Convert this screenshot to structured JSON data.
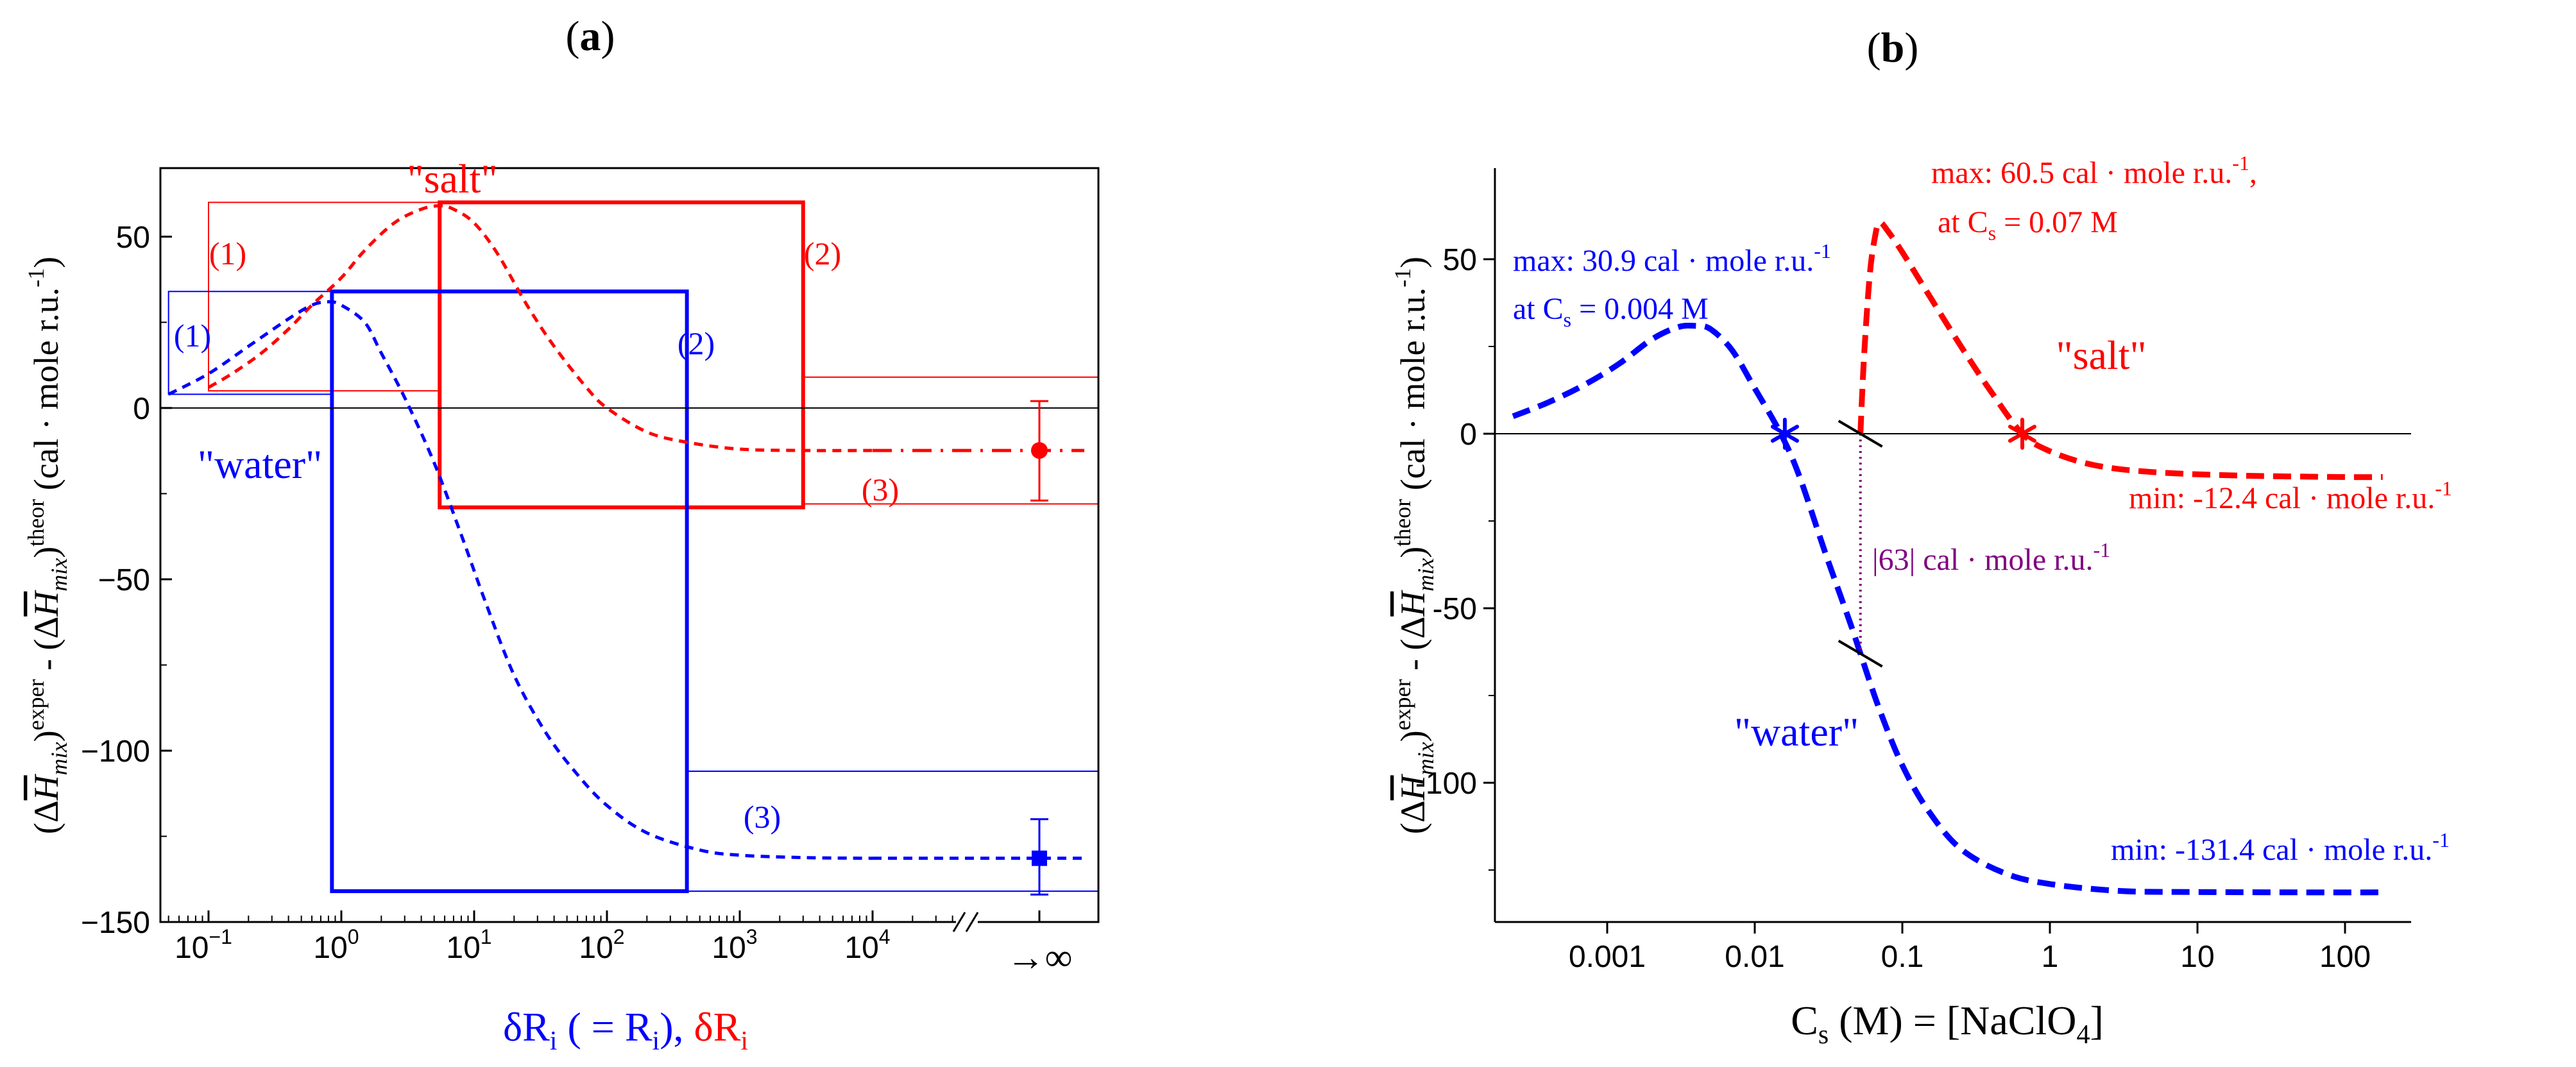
{
  "chart_data": [
    {
      "panel_label": "(a)",
      "type": "line",
      "x_scale": "log",
      "xlim": [
        0.05,
        30000
      ],
      "ylim": [
        -150,
        70
      ],
      "yticks": [
        -150,
        -100,
        -50,
        0,
        50
      ],
      "ytick_labels": [
        "−150",
        "−100",
        "−50",
        "0",
        "50"
      ],
      "xticks": [
        0.1,
        1,
        10,
        100,
        1000,
        10000
      ],
      "xtick_mantissa": "10",
      "xtick_exponents": [
        "−1",
        "0",
        "1",
        "2",
        "3",
        "4"
      ],
      "infinity_label": "→∞",
      "ylabel": {
        "open": "(Δ",
        "h": "H",
        "mix": "mix",
        "close": ")",
        "exper": "exper",
        "minus": " - (Δ",
        "theor": "theor",
        "units_open": " (cal · mole r.u.",
        "units_exp": "-1",
        "units_close": ")"
      },
      "xlabel": {
        "blue_main": "δR",
        "blue_sub": "i",
        "blue_mid": " ( = R",
        "blue_sub2": "i",
        "blue_end": "),",
        "red_main": " δR",
        "red_sub": "i"
      },
      "series": [
        {
          "name": "\"salt\"",
          "color": "#ff0000",
          "x": [
            0.1,
            0.15,
            0.25,
            0.4,
            0.6,
            1,
            1.5,
            2.5,
            4,
            5.5,
            7,
            10,
            15,
            25,
            40,
            70,
            100,
            200,
            400,
            1000,
            3000,
            10000
          ],
          "y": [
            6,
            10,
            16,
            23,
            30,
            38,
            46,
            54,
            58,
            59,
            58,
            54,
            45,
            30,
            18,
            6,
            0,
            -7,
            -10,
            -12,
            -12.4,
            -12.4
          ],
          "infinity_value": -12.4,
          "infinity_error": [
            -27,
            2
          ],
          "annotations": [
            "(1)",
            "(2)",
            "(3)"
          ]
        },
        {
          "name": "\"water\"",
          "color": "#0000ff",
          "x": [
            0.05,
            0.1,
            0.2,
            0.4,
            0.6,
            0.8,
            1,
            1.5,
            2,
            3,
            5,
            8,
            12,
            20,
            35,
            60,
            100,
            200,
            500,
            1000,
            3000,
            10000
          ],
          "y": [
            4,
            10,
            18,
            26,
            30,
            31,
            30,
            25,
            16,
            3,
            -16,
            -37,
            -56,
            -78,
            -95,
            -107,
            -116,
            -124,
            -129,
            -130.5,
            -131.2,
            -131.4
          ],
          "infinity_value": -131.4,
          "infinity_error": [
            -142,
            -120
          ],
          "annotations": [
            "(1)",
            "(2)",
            "(3)"
          ]
        }
      ],
      "boxes": [
        {
          "series": "salt",
          "label": "(1)",
          "x": [
            0.1,
            5.5
          ],
          "y": [
            5,
            60
          ],
          "weight": "thin"
        },
        {
          "series": "salt",
          "label": "(2)",
          "x": [
            5.5,
            3000
          ],
          "y": [
            -29,
            60
          ],
          "weight": "thick"
        },
        {
          "series": "salt",
          "label": "(3)",
          "x": [
            3000,
            "inf"
          ],
          "y": [
            -28,
            9
          ],
          "weight": "thin"
        },
        {
          "series": "water",
          "label": "(1)",
          "x": [
            0.05,
            0.85
          ],
          "y": [
            4,
            34
          ],
          "weight": "thin"
        },
        {
          "series": "water",
          "label": "(2)",
          "x": [
            0.85,
            400
          ],
          "y": [
            -141,
            34
          ],
          "weight": "thick"
        },
        {
          "series": "water",
          "label": "(3)",
          "x": [
            400,
            "inf"
          ],
          "y": [
            -141,
            -106
          ],
          "weight": "thin"
        }
      ],
      "labels": {
        "salt": "\"salt\"",
        "water": "\"water\""
      }
    },
    {
      "panel_label": "(b)",
      "type": "line",
      "x_scale": "log",
      "xlim": [
        0.0002,
        200
      ],
      "ylim": [
        -140,
        70
      ],
      "yticks": [
        -100,
        -50,
        0,
        50
      ],
      "ytick_labels": [
        "-100",
        "-50",
        "0",
        "50"
      ],
      "xticks": [
        0.001,
        0.01,
        0.1,
        1,
        10,
        100
      ],
      "xtick_labels": [
        "0.001",
        "0.01",
        "0.1",
        "1",
        "10",
        "100"
      ],
      "xlabel": {
        "c": "C",
        "s": "s",
        "rest": " (M) = [NaClO",
        "four": "4",
        "end": "]"
      },
      "ylabel": {
        "open": "(Δ",
        "h": "H",
        "mix": "mix",
        "close": ")",
        "exper": "exper",
        "minus": " - (Δ",
        "theor": "theor",
        "units_open": " (cal · mole r.u.",
        "units_exp": "-1",
        "units_close": ")"
      },
      "series": [
        {
          "name": "\"water\"",
          "color": "#0000ff",
          "x": [
            0.00023,
            0.0004,
            0.0007,
            0.0012,
            0.002,
            0.003,
            0.004,
            0.005,
            0.007,
            0.01,
            0.015,
            0.02,
            0.03,
            0.045,
            0.052,
            0.07,
            0.1,
            0.15,
            0.25,
            0.5,
            1,
            3,
            10,
            50,
            180
          ],
          "y": [
            5,
            9,
            14,
            20,
            27,
            30.5,
            30.9,
            30,
            24,
            13,
            0,
            -12,
            -34,
            -55,
            -63,
            -79,
            -95,
            -108,
            -119,
            -126,
            -129,
            -131,
            -131.3,
            -131.4,
            -131.4
          ],
          "star": {
            "x": 0.016,
            "y": 0
          },
          "max_label": [
            "max: 30.9 cal · mole r.u.",
            "-1",
            "at C",
            "s",
            " = 0.004 M"
          ],
          "min_label": [
            "min: -131.4 cal · mole r.u.",
            "-1"
          ]
        },
        {
          "name": "\"salt\"",
          "color": "#ff0000",
          "x": [
            0.052,
            0.055,
            0.06,
            0.065,
            0.07,
            0.08,
            0.1,
            0.15,
            0.25,
            0.4,
            0.65,
            1,
            2,
            5,
            20,
            100,
            180
          ],
          "y": [
            0,
            22,
            45,
            56,
            60.5,
            58,
            52,
            40,
            25,
            12,
            0,
            -5,
            -9,
            -11,
            -12,
            -12.4,
            -12.4
          ],
          "star": {
            "x": 0.65,
            "y": 0
          },
          "max_label": [
            "max: 60.5 cal · mole r.u.",
            "-1",
            ",",
            "at C",
            "s",
            " = 0.07 M"
          ],
          "min_label": [
            "min: -12.4 cal · mole r.u.",
            "-1"
          ]
        }
      ],
      "gap": {
        "x": 0.052,
        "y_from": 0,
        "y_to": -63,
        "label": "|63| cal · mole r.u.",
        "label_exp": "-1",
        "color": "#800080"
      },
      "labels": {
        "salt": "\"salt\"",
        "water": "\"water\""
      }
    }
  ]
}
